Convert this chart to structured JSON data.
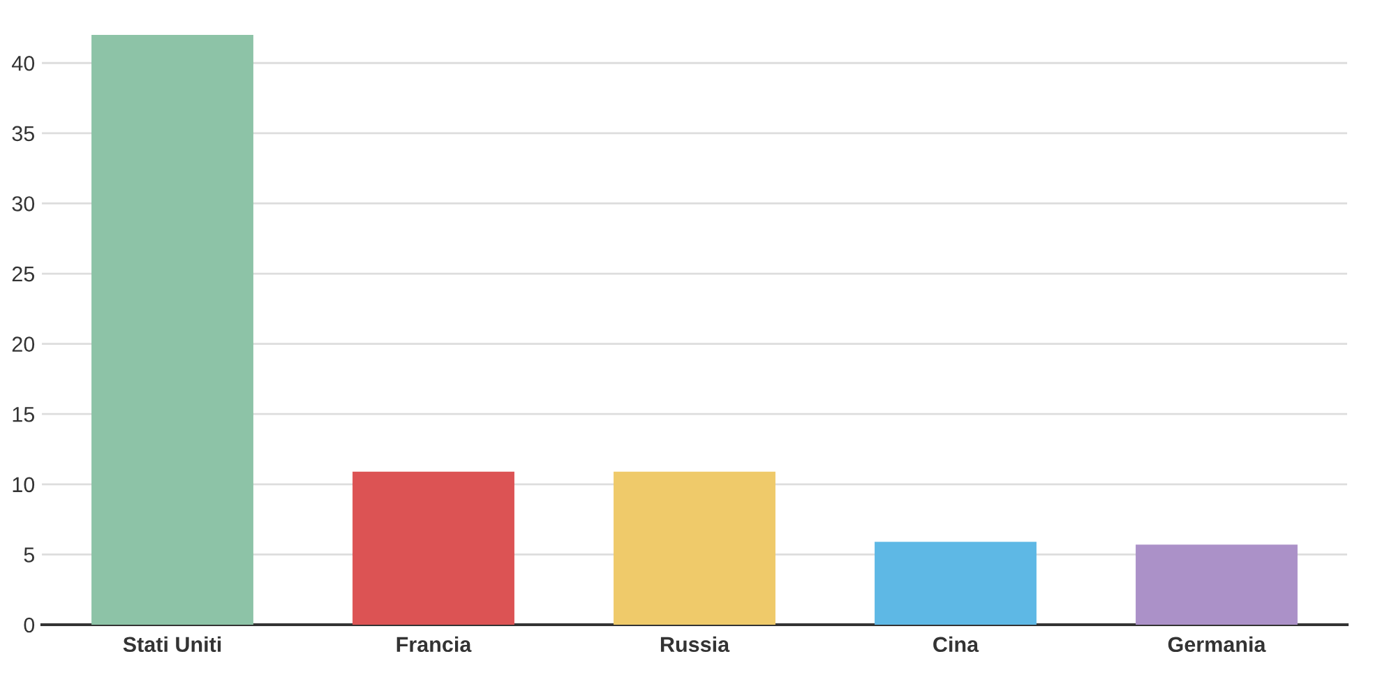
{
  "chart_data": {
    "type": "bar",
    "categories": [
      "Stati Uniti",
      "Francia",
      "Russia",
      "Cina",
      "Germania"
    ],
    "values": [
      42,
      10.9,
      10.9,
      5.9,
      5.7
    ],
    "colors": [
      "#8dc3a7",
      "#dc5354",
      "#efca6a",
      "#5eb8e5",
      "#ab91c8"
    ],
    "ylim": [
      0,
      42
    ],
    "yticks": [
      0,
      5,
      10,
      15,
      20,
      25,
      30,
      35,
      40
    ],
    "grid": "y",
    "legend": false
  }
}
